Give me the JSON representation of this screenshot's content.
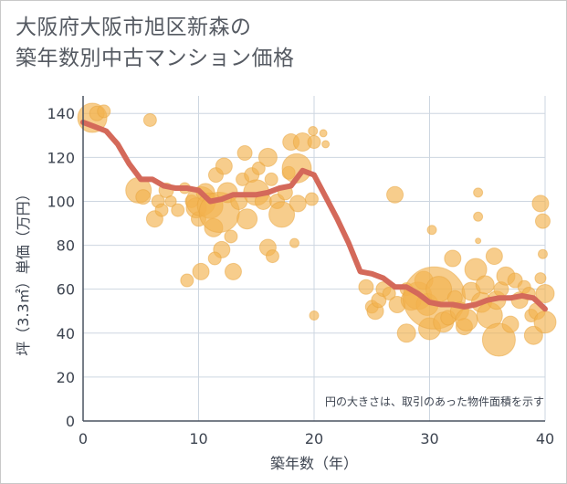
{
  "title_lines": [
    "大阪府大阪市旭区新森の",
    "築年数別中古マンション価格"
  ],
  "chart_data": {
    "type": "scatter",
    "xlabel": "築年数（年）",
    "ylabel": "坪（3.3㎡）単価（万円）",
    "xlim": [
      0,
      40
    ],
    "ylim": [
      0,
      148
    ],
    "xticks": [
      0,
      10,
      20,
      30,
      40
    ],
    "yticks": [
      0,
      20,
      40,
      60,
      80,
      100,
      120,
      140
    ],
    "grid": true,
    "note": "円の大きさは、取引のあった物件面積を示す",
    "colors": {
      "bubble": "#f2b24f",
      "line": "#d4695a",
      "grid": "#cdd6e0",
      "axis": "#4a5360"
    },
    "line": {
      "x": [
        0,
        1,
        2,
        3,
        4,
        5,
        6,
        7,
        8,
        9,
        10,
        11,
        12,
        13,
        14,
        15,
        16,
        17,
        18,
        19,
        20,
        21,
        22,
        23,
        24,
        25,
        26,
        27,
        28,
        29,
        30,
        31,
        32,
        33,
        34,
        35,
        36,
        37,
        38,
        39,
        40
      ],
      "y": [
        136,
        134,
        132,
        126,
        117,
        110,
        110,
        107,
        106,
        106,
        105,
        100,
        101,
        103,
        103,
        103,
        104,
        106,
        107,
        114,
        112,
        102,
        92,
        81,
        68,
        67,
        65,
        61,
        61,
        58,
        54,
        53,
        53,
        52,
        53,
        55,
        56,
        56,
        57,
        56,
        51
      ]
    },
    "bubbles": [
      [
        0.8,
        138,
        16
      ],
      [
        1.2,
        140,
        8
      ],
      [
        1.8,
        141,
        7
      ],
      [
        5.8,
        137,
        7
      ],
      [
        4.8,
        105,
        14
      ],
      [
        5.2,
        102,
        8
      ],
      [
        6.2,
        92,
        9
      ],
      [
        6.5,
        100,
        7
      ],
      [
        6.8,
        96,
        7
      ],
      [
        7.2,
        105,
        8
      ],
      [
        7.6,
        100,
        6
      ],
      [
        8.2,
        96,
        7
      ],
      [
        8.8,
        106,
        6
      ],
      [
        9,
        64,
        7
      ],
      [
        9.4,
        100,
        7
      ],
      [
        9.8,
        97,
        11
      ],
      [
        10,
        92,
        8
      ],
      [
        10.2,
        100,
        16
      ],
      [
        10.6,
        104,
        10
      ],
      [
        10.2,
        68,
        9
      ],
      [
        11,
        98,
        14
      ],
      [
        11.3,
        88,
        10
      ],
      [
        11.5,
        112,
        8
      ],
      [
        11.8,
        95,
        22
      ],
      [
        12,
        78,
        9
      ],
      [
        11.4,
        74,
        7
      ],
      [
        12.2,
        116,
        9
      ],
      [
        12.5,
        104,
        11
      ],
      [
        12.8,
        84,
        7
      ],
      [
        13,
        68,
        9
      ],
      [
        13.5,
        100,
        9
      ],
      [
        13.8,
        110,
        7
      ],
      [
        14,
        122,
        8
      ],
      [
        14.2,
        92,
        11
      ],
      [
        14.6,
        112,
        8
      ],
      [
        15,
        104,
        14
      ],
      [
        15.2,
        115,
        7
      ],
      [
        15.6,
        100,
        9
      ],
      [
        16,
        120,
        10
      ],
      [
        16.3,
        110,
        7
      ],
      [
        16,
        79,
        9
      ],
      [
        16.4,
        75,
        7
      ],
      [
        16.8,
        100,
        8
      ],
      [
        17.2,
        94,
        14
      ],
      [
        17.5,
        104,
        8
      ],
      [
        17.8,
        113,
        7
      ],
      [
        18,
        127,
        9
      ],
      [
        18.3,
        81,
        5
      ],
      [
        18.5,
        115,
        16
      ],
      [
        18.6,
        99,
        9
      ],
      [
        19,
        127,
        10
      ],
      [
        20,
        127,
        7
      ],
      [
        19.8,
        101,
        7
      ],
      [
        19.9,
        132,
        5
      ],
      [
        20.8,
        131,
        4
      ],
      [
        21,
        126,
        4
      ],
      [
        20,
        48,
        5
      ],
      [
        24.5,
        61,
        8
      ],
      [
        25,
        52,
        7
      ],
      [
        25.3,
        50,
        9
      ],
      [
        25.6,
        55,
        8
      ],
      [
        26,
        60,
        8
      ],
      [
        26.5,
        58,
        7
      ],
      [
        27,
        103,
        9
      ],
      [
        27.2,
        53,
        9
      ],
      [
        28,
        60,
        7
      ],
      [
        28,
        40,
        10
      ],
      [
        28.4,
        55,
        11
      ],
      [
        29,
        57,
        15
      ],
      [
        29.5,
        64,
        10
      ],
      [
        29.8,
        53,
        12
      ],
      [
        30,
        42,
        12
      ],
      [
        30.2,
        87,
        5
      ],
      [
        30.4,
        56,
        34
      ],
      [
        30.8,
        60,
        14
      ],
      [
        31.2,
        45,
        11
      ],
      [
        31.6,
        47,
        8
      ],
      [
        32,
        74,
        9
      ],
      [
        32.2,
        56,
        8
      ],
      [
        32.6,
        50,
        10
      ],
      [
        33,
        43,
        9
      ],
      [
        33.2,
        46,
        12
      ],
      [
        33.6,
        59,
        10
      ],
      [
        34,
        69,
        12
      ],
      [
        34.2,
        93,
        5
      ],
      [
        34.2,
        104,
        5
      ],
      [
        34.2,
        82,
        3
      ],
      [
        34.5,
        54,
        11
      ],
      [
        34.8,
        62,
        10
      ],
      [
        35.2,
        48,
        14
      ],
      [
        35.6,
        75,
        9
      ],
      [
        35.8,
        55,
        10
      ],
      [
        36,
        37,
        18
      ],
      [
        36.2,
        60,
        8
      ],
      [
        36.6,
        66,
        10
      ],
      [
        37,
        44,
        9
      ],
      [
        37.4,
        64,
        8
      ],
      [
        37.8,
        55,
        9
      ],
      [
        38.2,
        61,
        7
      ],
      [
        38.6,
        58,
        7
      ],
      [
        38.8,
        48,
        7
      ],
      [
        39,
        39,
        10
      ],
      [
        39.3,
        50,
        9
      ],
      [
        39.6,
        99,
        9
      ],
      [
        39.8,
        91,
        8
      ],
      [
        39.8,
        76,
        5
      ],
      [
        40,
        45,
        12
      ],
      [
        40,
        58,
        10
      ],
      [
        39.6,
        65,
        6
      ]
    ]
  }
}
